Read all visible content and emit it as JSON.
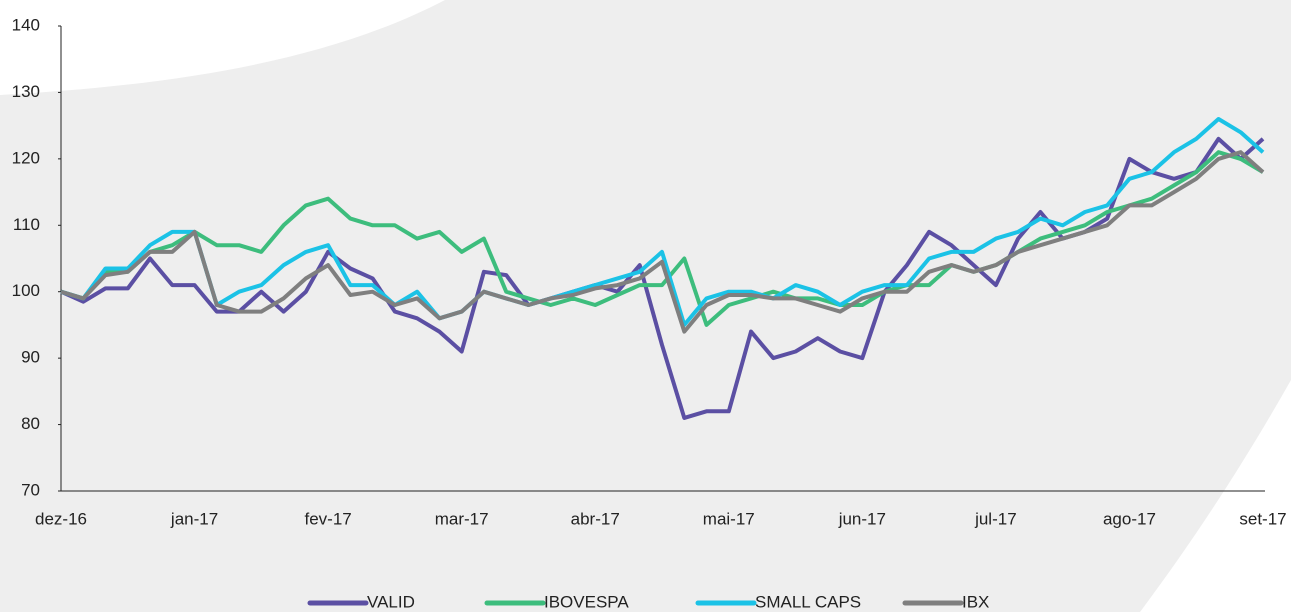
{
  "chart_data": {
    "type": "line",
    "categories": [
      "dez-16",
      null,
      null,
      null,
      null,
      null,
      "jan-17",
      null,
      null,
      null,
      null,
      null,
      "fev-17",
      null,
      null,
      null,
      null,
      null,
      "mar-17",
      null,
      null,
      null,
      null,
      null,
      "abr-17",
      null,
      null,
      null,
      null,
      null,
      "mai-17",
      null,
      null,
      null,
      null,
      null,
      "jun-17",
      null,
      null,
      null,
      null,
      null,
      "jul-17",
      null,
      null,
      null,
      null,
      null,
      "ago-17",
      null,
      null,
      null,
      null,
      null,
      "set-17"
    ],
    "series": [
      {
        "name": "VALID",
        "color": "#5b4fa3",
        "values": [
          100,
          98.5,
          100.5,
          100.5,
          105,
          101,
          101,
          97,
          97,
          100,
          97,
          100,
          106,
          103.5,
          102,
          97,
          96,
          94,
          91,
          103,
          102.5,
          98,
          99,
          100,
          101,
          100,
          104,
          92,
          81,
          82,
          82,
          94,
          90,
          91,
          93,
          91,
          90,
          100,
          104,
          109,
          107,
          104,
          101,
          108,
          112,
          108,
          109,
          111,
          120,
          118,
          117,
          118,
          123,
          120,
          123
        ]
      },
      {
        "name": "IBOVESPA",
        "color": "#3dbd7d",
        "values": [
          100,
          99,
          103,
          103,
          106,
          107,
          109,
          107,
          107,
          106,
          110,
          113,
          114,
          111,
          110,
          110,
          108,
          109,
          106,
          108,
          100,
          99,
          98,
          99,
          98,
          99.5,
          101,
          101,
          105,
          95,
          98,
          99,
          100,
          99,
          99,
          98,
          98,
          100,
          101,
          101,
          104,
          103,
          104,
          106,
          108,
          109,
          110,
          112,
          113,
          114,
          116,
          118,
          121,
          120,
          118
        ]
      },
      {
        "name": "SMALL CAPS",
        "color": "#1bc2e6",
        "values": [
          100,
          99,
          103.5,
          103.5,
          107,
          109,
          109,
          98,
          100,
          101,
          104,
          106,
          107,
          101,
          101,
          98,
          100,
          96,
          97,
          100,
          99,
          98,
          99,
          100,
          101,
          102,
          103,
          106,
          95,
          99,
          100,
          100,
          99,
          101,
          100,
          98,
          100,
          101,
          101,
          105,
          106,
          106,
          108,
          109,
          111,
          110,
          112,
          113,
          117,
          118,
          121,
          123,
          126,
          124,
          121
        ]
      },
      {
        "name": "IBX",
        "color": "#7f7f7f",
        "values": [
          100,
          99,
          102.5,
          103,
          106,
          106,
          109,
          98,
          97,
          97,
          99,
          102,
          104,
          99.5,
          100,
          98,
          99,
          96,
          97,
          100,
          99,
          98,
          99,
          99.5,
          100.5,
          101,
          102,
          104.5,
          94,
          98,
          99.5,
          99.5,
          99,
          99,
          98,
          97,
          99,
          100,
          100,
          103,
          104,
          103,
          104,
          106,
          107,
          108,
          109,
          110,
          113,
          113,
          115,
          117,
          120,
          121,
          118
        ]
      }
    ],
    "ylim": [
      70,
      140
    ],
    "yticks": [
      70,
      80,
      90,
      100,
      110,
      120,
      130,
      140
    ],
    "legend": "bottom"
  }
}
